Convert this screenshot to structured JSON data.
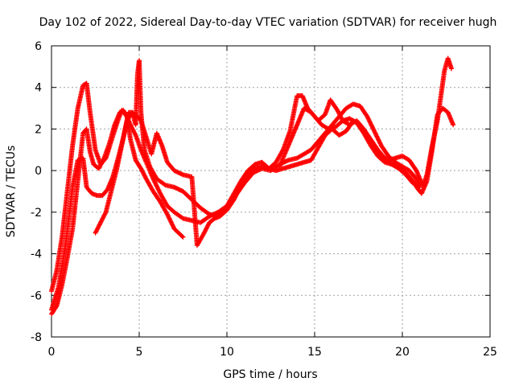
{
  "chart_data": {
    "type": "scatter",
    "title": "Day 102 of 2022, Sidereal Day-to-day VTEC variation (SDTVAR) for receiver hugh",
    "xlabel": "GPS time / hours",
    "ylabel": "SDTVAR / TECUs",
    "xlim": [
      0,
      25
    ],
    "ylim": [
      -8,
      6
    ],
    "xticks": [
      0,
      5,
      10,
      15,
      20,
      25
    ],
    "yticks": [
      -8,
      -6,
      -4,
      -2,
      0,
      2,
      4,
      6
    ],
    "grid": true,
    "legend": "none",
    "marker": "+",
    "color": "#ff0000",
    "series": [
      {
        "name": "track-1",
        "x": [
          0.0,
          0.3,
          0.6,
          0.9,
          1.2,
          1.5,
          1.8,
          2.0,
          2.2,
          2.4,
          2.7,
          3.0,
          3.3,
          3.6,
          3.9,
          4.1,
          4.3,
          4.5,
          4.8,
          5.1,
          5.4,
          5.8,
          6.2,
          6.6,
          7.0,
          7.5
        ],
        "y": [
          -6.9,
          -6.5,
          -5.5,
          -4.2,
          -2.8,
          -0.5,
          1.8,
          2.0,
          0.9,
          0.3,
          0.1,
          0.6,
          1.3,
          2.2,
          2.8,
          2.9,
          2.6,
          1.5,
          0.5,
          0.1,
          -0.4,
          -1.0,
          -1.5,
          -2.1,
          -2.8,
          -3.2
        ]
      },
      {
        "name": "track-2",
        "x": [
          0.0,
          0.3,
          0.6,
          0.9,
          1.2,
          1.5,
          1.8,
          2.0,
          2.2,
          2.5,
          2.8,
          3.1,
          3.4,
          3.7,
          4.0,
          4.3,
          4.5,
          4.8,
          5.1,
          5.4,
          5.8,
          6.2,
          6.6,
          7.0,
          7.5,
          8.0,
          8.5,
          9.0,
          9.5,
          10.0,
          10.4,
          10.8,
          11.2,
          11.6,
          12.0,
          12.4,
          12.8,
          13.2,
          13.6,
          14.0,
          14.3,
          14.6,
          15.0,
          15.4,
          15.8,
          16.2,
          16.6,
          17.0,
          17.4,
          17.8,
          18.2,
          18.6,
          19.0,
          19.4,
          19.8,
          20.2,
          20.6,
          20.9,
          21.1,
          21.4,
          21.7,
          22.0,
          22.3,
          22.6,
          22.9
        ],
        "y": [
          -5.8,
          -4.8,
          -3.2,
          -1.0,
          1.2,
          3.0,
          4.1,
          4.2,
          2.8,
          1.0,
          0.3,
          0.6,
          1.4,
          2.2,
          2.9,
          2.6,
          2.2,
          1.7,
          1.0,
          0.4,
          -0.4,
          -1.1,
          -1.7,
          -2.0,
          -2.3,
          -2.4,
          -2.5,
          -2.2,
          -2.0,
          -1.7,
          -1.1,
          -0.5,
          0.0,
          0.3,
          0.4,
          0.1,
          0.4,
          1.0,
          1.9,
          3.6,
          3.6,
          3.0,
          2.6,
          2.2,
          2.0,
          2.1,
          2.4,
          2.5,
          2.3,
          1.8,
          1.2,
          0.7,
          0.4,
          0.3,
          0.2,
          -0.1,
          -0.5,
          -0.9,
          -1.1,
          -0.5,
          1.0,
          2.7,
          3.0,
          2.8,
          2.2
        ]
      },
      {
        "name": "track-3",
        "x": [
          0.0,
          0.4,
          0.8,
          1.2,
          1.5,
          1.8,
          2.0,
          2.3,
          2.6,
          2.9,
          3.2,
          3.5,
          3.8,
          4.1,
          4.4,
          4.6,
          4.8,
          4.9,
          5.0,
          5.1,
          5.3,
          5.6,
          6.0,
          6.5,
          7.0,
          7.5,
          8.0,
          8.5,
          9.0,
          9.5,
          10.0,
          10.5,
          11.0,
          11.5,
          12.0,
          12.5,
          13.0,
          13.5,
          14.0,
          14.4,
          14.8,
          15.2,
          15.6,
          16.0,
          16.4,
          16.8,
          17.2,
          17.6,
          18.0,
          18.4,
          18.8,
          19.2,
          19.6,
          20.0,
          20.4,
          20.8,
          21.0,
          21.2,
          21.4,
          21.7,
          22.0,
          22.2,
          22.4,
          22.6,
          22.8
        ],
        "y": [
          -6.7,
          -5.6,
          -3.6,
          -0.8,
          0.5,
          0.6,
          -0.8,
          -1.1,
          -1.2,
          -1.2,
          -0.9,
          -0.3,
          0.6,
          1.6,
          2.8,
          2.8,
          2.2,
          4.6,
          5.3,
          2.8,
          1.0,
          0.2,
          -0.4,
          -0.7,
          -0.8,
          -1.0,
          -1.4,
          -1.8,
          -2.1,
          -2.2,
          -1.8,
          -1.2,
          -0.6,
          -0.1,
          0.1,
          0.0,
          0.3,
          0.5,
          0.6,
          0.8,
          1.0,
          1.4,
          1.8,
          2.2,
          2.6,
          3.0,
          3.2,
          3.1,
          2.6,
          1.9,
          1.2,
          0.7,
          0.4,
          0.2,
          0.0,
          -0.4,
          -0.7,
          -0.7,
          -0.2,
          1.2,
          2.4,
          3.6,
          4.8,
          5.4,
          4.9
        ]
      },
      {
        "name": "track-4",
        "x": [
          2.5,
          2.8,
          3.1,
          3.4,
          3.7,
          4.0,
          4.3,
          4.6,
          4.9,
          5.1,
          5.4,
          5.7,
          6.0,
          6.3,
          6.6,
          7.0,
          7.5,
          8.0,
          8.3,
          8.7,
          9.0,
          9.3,
          9.6,
          10.0,
          10.4,
          10.8,
          11.2,
          11.6,
          12.0,
          12.4,
          12.8,
          13.2,
          13.6,
          14.0,
          14.4,
          14.8,
          15.2,
          15.6,
          16.0,
          16.4,
          16.8,
          17.2,
          17.6,
          18.0,
          18.4,
          18.8,
          19.2,
          19.6,
          20.0,
          20.4,
          20.8,
          21.1
        ],
        "y": [
          -3.0,
          -2.5,
          -2.0,
          -1.0,
          0.0,
          1.2,
          2.4,
          2.8,
          2.6,
          2.4,
          1.6,
          0.8,
          1.8,
          1.2,
          0.4,
          0.0,
          -0.2,
          -0.3,
          -3.6,
          -3.0,
          -2.5,
          -2.3,
          -2.2,
          -1.9,
          -1.4,
          -0.7,
          -0.2,
          0.1,
          0.2,
          0.1,
          0.0,
          0.1,
          0.2,
          0.3,
          0.4,
          0.5,
          1.1,
          1.7,
          2.0,
          1.7,
          1.9,
          2.4,
          2.2,
          1.7,
          1.1,
          0.7,
          0.5,
          0.6,
          0.7,
          0.5,
          0.0,
          -0.6
        ]
      },
      {
        "name": "track-5",
        "x": [
          13.0,
          13.4,
          13.8,
          14.1,
          14.4,
          14.8,
          15.2,
          15.6,
          15.9,
          16.3,
          16.6,
          17.0,
          17.4,
          17.8,
          18.2,
          18.6,
          19.0,
          19.4,
          19.8,
          20.2,
          20.6,
          21.0
        ],
        "y": [
          0.2,
          1.0,
          1.8,
          2.4,
          3.0,
          2.8,
          2.4,
          2.7,
          3.4,
          2.9,
          2.4,
          2.2,
          2.4,
          2.0,
          1.5,
          1.0,
          0.6,
          0.3,
          0.1,
          -0.2,
          -0.6,
          -0.8
        ]
      }
    ]
  }
}
